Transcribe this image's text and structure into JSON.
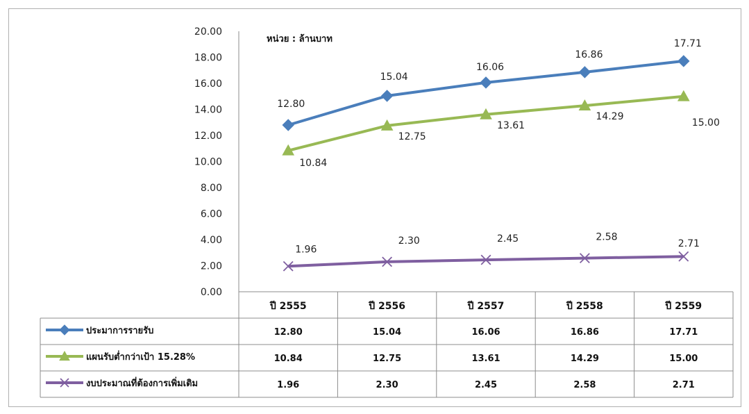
{
  "chart_data": {
    "type": "line",
    "unit_note": "หน่วย : ล้านบาท",
    "categories": [
      "ปี 2555",
      "ปี 2556",
      "ปี 2557",
      "ปี 2558",
      "ปี 2559"
    ],
    "ylim": [
      0,
      20
    ],
    "yticks": [
      "0.00",
      "2.00",
      "4.00",
      "6.00",
      "8.00",
      "10.00",
      "12.00",
      "14.00",
      "16.00",
      "18.00",
      "20.00"
    ],
    "grid": false,
    "legend": "data-table",
    "series": [
      {
        "name": "ประมาการรายรับ",
        "marker": "diamond",
        "color": "#4a7ebb",
        "values": [
          12.8,
          15.04,
          16.06,
          16.86,
          17.71
        ],
        "labels": [
          "12.80",
          "15.04",
          "16.06",
          "16.86",
          "17.71"
        ]
      },
      {
        "name": "แผนรับต่ำกว่าเป้า 15.28%",
        "marker": "triangle",
        "color": "#98b954",
        "values": [
          10.84,
          12.75,
          13.61,
          14.29,
          15.0
        ],
        "labels": [
          "10.84",
          "12.75",
          "13.61",
          "14.29",
          "15.00"
        ]
      },
      {
        "name": "งบประมาณที่ต้องการเพิ่มเติม",
        "marker": "x",
        "color": "#7f5fa0",
        "values": [
          1.96,
          2.3,
          2.45,
          2.58,
          2.71
        ],
        "labels": [
          "1.96",
          "2.30",
          "2.45",
          "2.58",
          "2.71"
        ]
      }
    ]
  }
}
